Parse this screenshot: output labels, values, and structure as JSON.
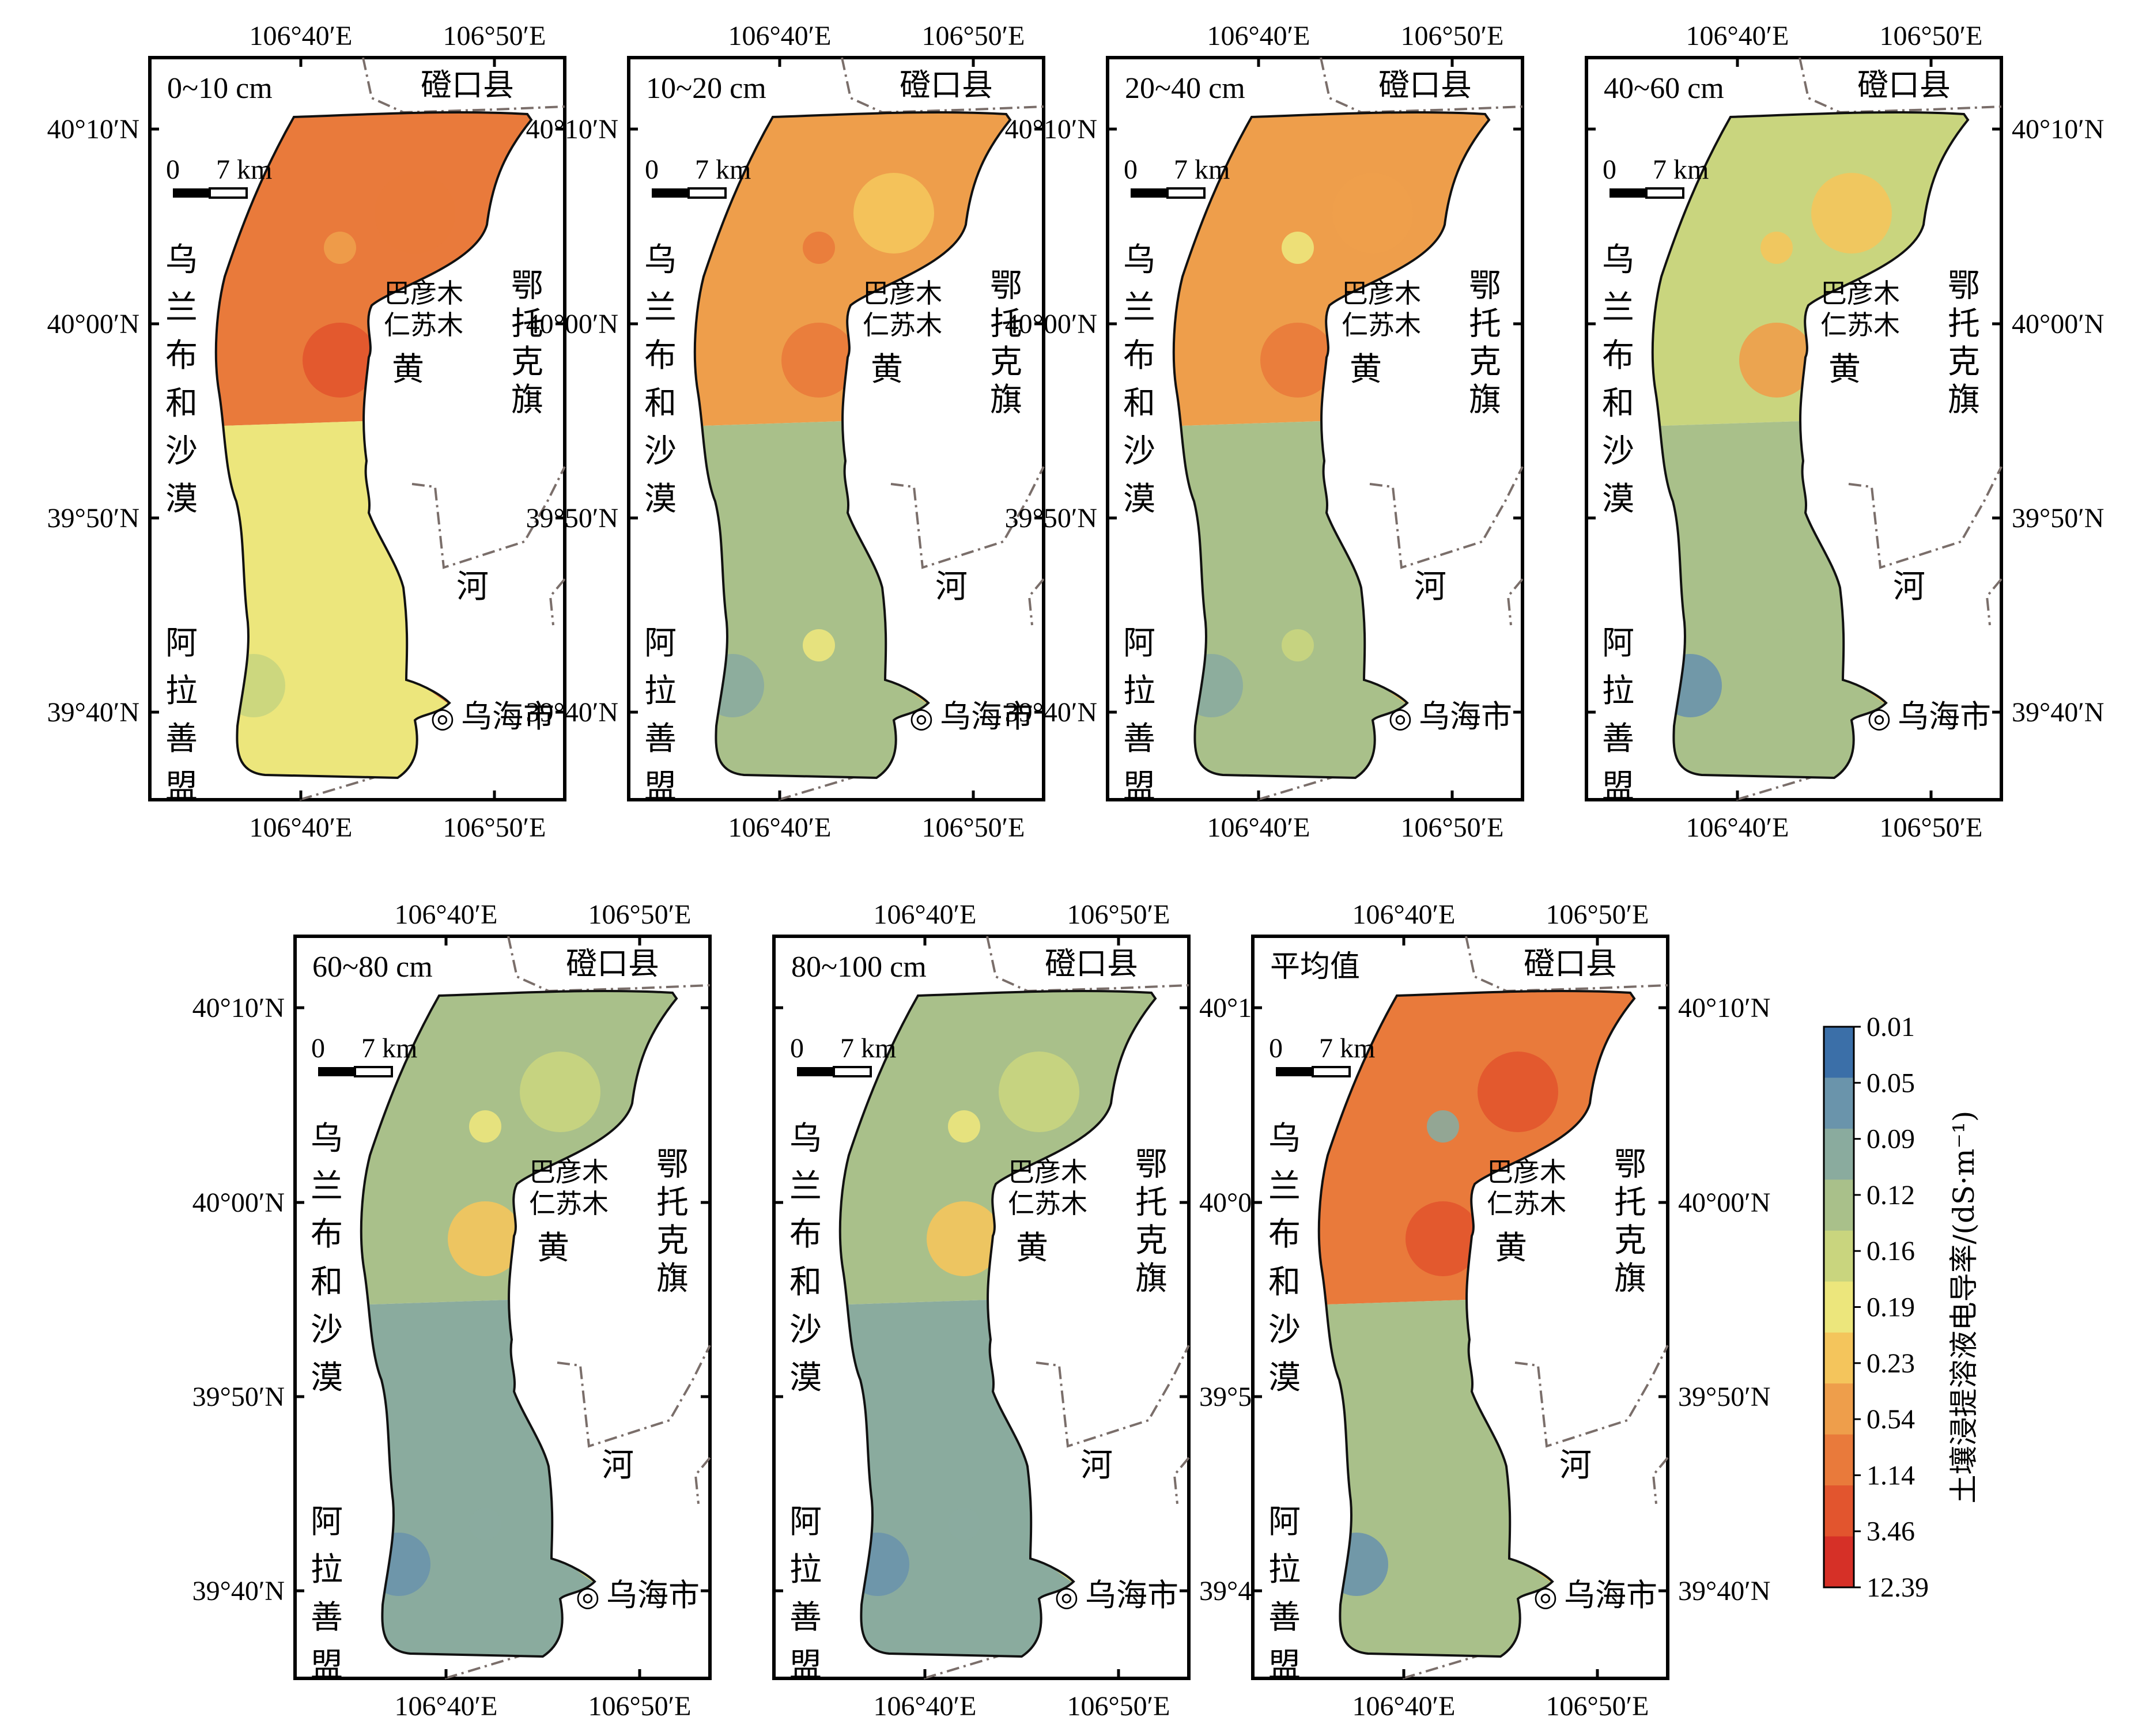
{
  "panels": [
    {
      "label": "0~10 cm"
    },
    {
      "label": "10~20 cm"
    },
    {
      "label": "20~40 cm"
    },
    {
      "label": "40~60 cm"
    },
    {
      "label": "60~80 cm"
    },
    {
      "label": "80~100 cm"
    },
    {
      "label": "平均值"
    }
  ],
  "panel_levels": [
    {
      "north": 8,
      "south": 5,
      "spots": [
        9,
        7,
        8,
        9,
        4,
        5
      ]
    },
    {
      "north": 7,
      "south": 3,
      "spots": [
        8,
        8,
        6,
        8,
        2,
        5
      ]
    },
    {
      "north": 7,
      "south": 3,
      "spots": [
        8,
        5,
        7,
        7,
        2,
        4
      ]
    },
    {
      "north": 4,
      "south": 3,
      "spots": [
        7,
        6,
        6,
        7,
        1,
        3
      ]
    },
    {
      "north": 3,
      "south": 2,
      "spots": [
        6,
        5,
        4,
        6,
        1,
        2
      ]
    },
    {
      "north": 3,
      "south": 2,
      "spots": [
        6,
        5,
        4,
        6,
        1,
        2
      ]
    },
    {
      "north": 8,
      "south": 3,
      "spots": [
        9,
        2,
        9,
        9,
        1,
        3
      ]
    }
  ],
  "axes": {
    "x_ticks": [
      "106°40′E",
      "106°50′E"
    ],
    "y_ticks": [
      "40°10′N",
      "40°00′N",
      "39°50′N",
      "39°40′N"
    ]
  },
  "places": {
    "dengkou": "磴口县",
    "ulan_buh": [
      "乌",
      "兰",
      "布",
      "和",
      "沙",
      "漠"
    ],
    "alxa": [
      "阿",
      "拉",
      "善",
      "盟"
    ],
    "otog": [
      "鄂",
      "托",
      "克",
      "旗"
    ],
    "bayan": [
      "巴彦木",
      "仁苏木"
    ],
    "huang": "黄",
    "he": "河",
    "wuhai": "乌海市",
    "wuhai_symbol": "◎"
  },
  "scale": {
    "zero": "0",
    "dist": "7 km"
  },
  "legend": {
    "title": "土壤浸提溶液电导率/(dS·m⁻¹)",
    "values": [
      "0.01",
      "0.05",
      "0.09",
      "0.12",
      "0.16",
      "0.19",
      "0.23",
      "0.54",
      "1.14",
      "3.46",
      "12.39"
    ],
    "colors": [
      "#3b6fa8",
      "#6a94ab",
      "#8aab9e",
      "#a9c08a",
      "#c9d57e",
      "#ece67c",
      "#f4c55c",
      "#ee9e4b",
      "#e97a3b",
      "#e2552e",
      "#d63027"
    ]
  }
}
